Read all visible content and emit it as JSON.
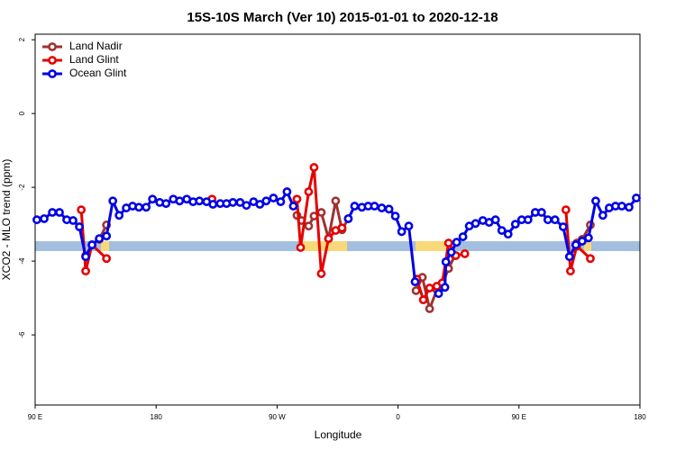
{
  "chart_data": {
    "type": "line",
    "title": "15S-10S March (Ver 10)   2015-01-01 to 2020-12-18",
    "x_label": "Longitude",
    "y_label": "XCO2 - MLO trend (ppm)",
    "xlim": [
      90,
      540
    ],
    "ylim": [
      -7.9,
      2.15
    ],
    "xticks": [
      {
        "value": 90,
        "label": "90 E"
      },
      {
        "value": 180,
        "label": "180"
      },
      {
        "value": 270,
        "label": "90 W"
      },
      {
        "value": 360,
        "label": "0"
      },
      {
        "value": 450,
        "label": "90 E"
      },
      {
        "value": 540,
        "label": "180"
      }
    ],
    "yticks": [
      -6,
      -4,
      -2,
      0,
      2
    ],
    "legend": "top-left",
    "series": [
      {
        "name": "Land Nadir",
        "color": "#a03232",
        "x": [
          127.6,
          132.3,
          137.7,
          143.1,
          null,
          284.8,
          288.2,
          293.5,
          297.5,
          302.9,
          308.3,
          313.6,
          318.3,
          323.0,
          null,
          373.4,
          378.1,
          383.5,
          388.9,
          392.9,
          397.6,
          402.3,
          null,
          487.6,
          493.0,
          497.0,
          503.1
        ],
        "values": [
          -3.85,
          -3.56,
          -3.41,
          -3.02,
          null,
          -2.76,
          -2.9,
          -3.05,
          -2.78,
          -2.68,
          -3.39,
          -2.37,
          -3.15,
          -2.85,
          null,
          -4.8,
          -4.44,
          -5.29,
          -4.78,
          -4.63,
          -4.2,
          -3.85,
          null,
          -3.88,
          -3.51,
          -3.41,
          -3.02
        ]
      },
      {
        "name": "Land Glint",
        "color": "#e60000",
        "x": [
          124.3,
          127.6,
          132.3,
          143.1,
          null,
          221.6,
          null,
          284.8,
          287.5,
          293.5,
          297.5,
          302.9,
          308.3,
          313.6,
          318.3,
          null,
          374.1,
          378.8,
          383.5,
          388.9,
          392.9,
          397.6,
          403.0,
          409.7,
          null,
          484.9,
          488.3,
          493.0,
          503.1
        ],
        "values": [
          -2.61,
          -4.27,
          -3.56,
          -3.93,
          null,
          -2.32,
          null,
          -2.32,
          -3.63,
          -2.12,
          -1.46,
          -4.34,
          -3.39,
          -3.17,
          -3.1,
          null,
          -4.49,
          -5.05,
          -4.73,
          -4.68,
          -4.59,
          -3.51,
          -3.85,
          -3.8,
          null,
          -2.61,
          -4.27,
          -3.59,
          -3.93
        ]
      },
      {
        "name": "Ocean Glint",
        "color": "#0000e6",
        "x": [
          91.3,
          96.7,
          102.8,
          108.1,
          113.5,
          118.2,
          122.9,
          127.6,
          132.3,
          137.7,
          143.1,
          147.8,
          152.5,
          157.8,
          162.5,
          167.2,
          172.6,
          177.3,
          182.7,
          187.4,
          192.8,
          197.5,
          202.8,
          207.5,
          212.2,
          217.6,
          222.3,
          227.7,
          232.4,
          237.1,
          242.5,
          247.2,
          252.5,
          257.2,
          261.9,
          267.3,
          272.7,
          277.4,
          282.1,
          null,
          323.0,
          327.7,
          333.1,
          337.8,
          342.5,
          347.9,
          353.3,
          358.0,
          362.7,
          368.0,
          372.7,
          null,
          390.2,
          394.9,
          395.6,
          399.6,
          403.6,
          408.3,
          413.0,
          417.7,
          423.1,
          427.8,
          432.5,
          437.2,
          441.9,
          447.3,
          452.0,
          456.7,
          462.1,
          466.8,
          471.5,
          476.8,
          482.9,
          487.6,
          492.3,
          497.0,
          501.7,
          507.1,
          512.4,
          517.1,
          521.8,
          526.5,
          531.9,
          537.3
        ],
        "values": [
          -2.88,
          -2.85,
          -2.68,
          -2.68,
          -2.88,
          -2.9,
          -3.07,
          -3.88,
          -3.56,
          -3.39,
          -3.32,
          -2.37,
          -2.76,
          -2.56,
          -2.51,
          -2.54,
          -2.54,
          -2.32,
          -2.41,
          -2.44,
          -2.32,
          -2.37,
          -2.32,
          -2.39,
          -2.37,
          -2.39,
          -2.46,
          -2.44,
          -2.44,
          -2.41,
          -2.41,
          -2.49,
          -2.39,
          -2.46,
          -2.37,
          -2.29,
          -2.39,
          -2.12,
          -2.51,
          null,
          -2.85,
          -2.51,
          -2.54,
          -2.51,
          -2.51,
          -2.56,
          -2.59,
          -2.78,
          -3.2,
          -3.05,
          -4.56,
          null,
          -4.88,
          -4.71,
          -4.02,
          -3.76,
          -3.49,
          -3.34,
          -3.05,
          -2.98,
          -2.9,
          -2.95,
          -2.88,
          -3.17,
          -3.27,
          -3.0,
          -2.88,
          -2.88,
          -2.68,
          -2.68,
          -2.88,
          -2.88,
          -3.07,
          -3.88,
          -3.56,
          -3.46,
          -3.37,
          -2.37,
          -2.76,
          -2.56,
          -2.51,
          -2.51,
          -2.54,
          -2.29
        ]
      }
    ]
  }
}
